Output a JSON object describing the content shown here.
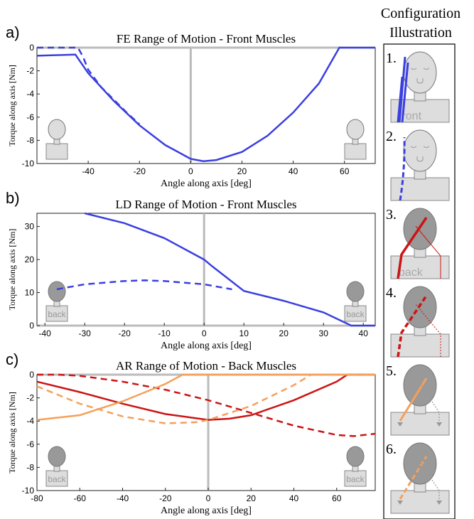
{
  "chart_data": [
    {
      "type": "line",
      "panel_label": "a)",
      "title": "FE Range of Motion - Front Muscles",
      "x_label": "Angle along axis [deg]",
      "y_label": "Torque along axis [Nm]",
      "xlim": [
        -60,
        72
      ],
      "ylim": [
        -10,
        0
      ],
      "xticks": [
        -40,
        -20,
        0,
        20,
        40,
        60
      ],
      "yticks": [
        -10,
        -8,
        -6,
        -4,
        -2,
        0
      ],
      "zero_lines": true,
      "series": [
        {
          "color": "#3a3fe0",
          "style": "solid",
          "x": [
            -60,
            -45,
            -40,
            -30,
            -20,
            -10,
            0,
            5,
            10,
            20,
            30,
            40,
            50,
            58,
            72
          ],
          "values": [
            -0.7,
            -0.6,
            -2.2,
            -4.6,
            -6.7,
            -8.4,
            -9.6,
            -9.8,
            -9.7,
            -9.0,
            -7.6,
            -5.6,
            -3.1,
            0,
            0
          ]
        },
        {
          "color": "#3a3fe0",
          "style": "dashed",
          "x": [
            -60,
            -44,
            -42,
            -40,
            -35,
            -30,
            -25,
            -20
          ],
          "values": [
            0,
            0,
            -0.8,
            -1.9,
            -3.4,
            -4.5,
            -5.6,
            -6.6
          ]
        }
      ]
    },
    {
      "type": "line",
      "panel_label": "b)",
      "title": "LD Range of Motion - Front Muscles",
      "x_label": "Angle along axis [deg]",
      "y_label": "Torque along axis [Nm]",
      "xlim": [
        -42,
        43
      ],
      "ylim": [
        0,
        34
      ],
      "xticks": [
        -40,
        -30,
        -20,
        -10,
        0,
        10,
        20,
        30,
        40
      ],
      "yticks": [
        0,
        10,
        20,
        30
      ],
      "zero_lines": true,
      "icon_labels": [
        "back",
        "back"
      ],
      "series": [
        {
          "color": "#3a3fe0",
          "style": "solid",
          "x": [
            -30,
            -20,
            -10,
            0,
            2,
            10,
            20,
            30,
            37,
            43
          ],
          "values": [
            34,
            31,
            26.5,
            20,
            18,
            10.5,
            7.5,
            4,
            0,
            0
          ]
        },
        {
          "color": "#3a3fe0",
          "style": "dashed",
          "x": [
            -37,
            -30,
            -20,
            -15,
            -10,
            0,
            7
          ],
          "values": [
            11,
            12.5,
            13.5,
            13.7,
            13.5,
            12.5,
            11
          ]
        }
      ]
    },
    {
      "type": "line",
      "panel_label": "c)",
      "title": "AR Range of Motion - Back Muscles",
      "x_label": "Angle along axis [deg]",
      "y_label": "Torque along axis [Nm]",
      "xlim": [
        -80,
        78
      ],
      "ylim": [
        -10,
        0
      ],
      "xticks": [
        -80,
        -60,
        -40,
        -20,
        0,
        20,
        40,
        60
      ],
      "yticks": [
        -10,
        -8,
        -6,
        -4,
        -2,
        0
      ],
      "zero_lines": true,
      "icon_labels": [
        "back",
        "back"
      ],
      "series": [
        {
          "color": "#cc1414",
          "style": "solid",
          "x": [
            -80,
            -60,
            -40,
            -20,
            0,
            10,
            20,
            40,
            60,
            65,
            78
          ],
          "values": [
            -0.6,
            -1.5,
            -2.5,
            -3.4,
            -3.9,
            -3.8,
            -3.5,
            -2.2,
            -0.6,
            0,
            0
          ]
        },
        {
          "color": "#cc1414",
          "style": "dashed",
          "x": [
            -80,
            -70,
            -60,
            -40,
            -20,
            0,
            20,
            40,
            60,
            68,
            78
          ],
          "values": [
            0,
            0,
            -0.1,
            -0.6,
            -1.3,
            -2.2,
            -3.3,
            -4.4,
            -5.2,
            -5.3,
            -5.1
          ]
        },
        {
          "color": "#f5a05a",
          "style": "solid",
          "x": [
            -80,
            -60,
            -40,
            -20,
            -12,
            78
          ],
          "values": [
            -3.9,
            -3.5,
            -2.3,
            -0.8,
            0,
            0
          ]
        },
        {
          "color": "#f5a05a",
          "style": "dashed",
          "x": [
            -80,
            -60,
            -40,
            -20,
            -5,
            0,
            20,
            40,
            48,
            78
          ],
          "values": [
            -1,
            -2.5,
            -3.6,
            -4.2,
            -4.1,
            -3.9,
            -2.7,
            -0.9,
            0,
            0
          ]
        }
      ]
    }
  ],
  "illustration": {
    "title": [
      "Configuration",
      "Illustration"
    ],
    "items": [
      {
        "number": "1.",
        "text": "front"
      },
      {
        "number": "2."
      },
      {
        "number": "3.",
        "text": "back"
      },
      {
        "number": "4."
      },
      {
        "number": "5."
      },
      {
        "number": "6."
      }
    ]
  }
}
